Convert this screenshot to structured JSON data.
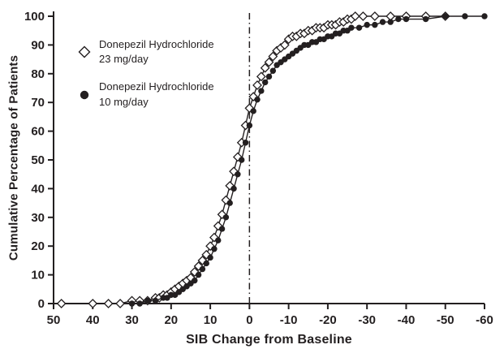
{
  "colors": {
    "ink": "#231f20",
    "background": "#ffffff"
  },
  "chart_data": {
    "type": "line",
    "title": "",
    "xlabel": "SIB Change from Baseline",
    "ylabel": "Cumulative Percentage of Patients",
    "grid": false,
    "legend_position": "upper-left-inside",
    "x_axis": {
      "min": 50,
      "max": -60,
      "reversed": true,
      "ticks": [
        50,
        40,
        30,
        20,
        10,
        0,
        -10,
        -20,
        -30,
        -40,
        -50,
        -60
      ]
    },
    "y_axis": {
      "min": 0,
      "max": 100,
      "ticks": [
        0,
        10,
        20,
        30,
        40,
        50,
        60,
        70,
        80,
        90,
        100
      ]
    },
    "reference_line": {
      "x": 0,
      "style": "dash-dot"
    },
    "series": [
      {
        "name": "Donepezil Hydrochloride 23 mg/day",
        "label_line1": "Donepezil Hydrochloride",
        "label_line2": "23 mg/day",
        "marker": "open-diamond",
        "color": "#231f20",
        "points": [
          [
            48,
            0
          ],
          [
            40,
            0
          ],
          [
            36,
            0
          ],
          [
            33,
            0
          ],
          [
            30,
            1
          ],
          [
            28,
            1
          ],
          [
            26,
            1
          ],
          [
            24,
            2
          ],
          [
            23,
            2
          ],
          [
            22,
            3
          ],
          [
            21,
            3
          ],
          [
            20,
            4
          ],
          [
            19,
            5
          ],
          [
            18,
            6
          ],
          [
            17,
            7
          ],
          [
            16,
            8
          ],
          [
            15,
            9
          ],
          [
            14,
            11
          ],
          [
            13,
            13
          ],
          [
            12,
            15
          ],
          [
            11,
            17
          ],
          [
            10,
            20
          ],
          [
            9,
            23
          ],
          [
            8,
            27
          ],
          [
            7,
            31
          ],
          [
            6,
            36
          ],
          [
            5,
            41
          ],
          [
            4,
            46
          ],
          [
            3,
            51
          ],
          [
            2,
            56
          ],
          [
            1,
            62
          ],
          [
            0,
            68
          ],
          [
            -1,
            72
          ],
          [
            -2,
            76
          ],
          [
            -3,
            79
          ],
          [
            -4,
            82
          ],
          [
            -5,
            84
          ],
          [
            -6,
            86
          ],
          [
            -7,
            88
          ],
          [
            -8,
            89
          ],
          [
            -9,
            90
          ],
          [
            -10,
            92
          ],
          [
            -11,
            93
          ],
          [
            -12,
            93
          ],
          [
            -13,
            94
          ],
          [
            -14,
            94
          ],
          [
            -15,
            95
          ],
          [
            -16,
            95
          ],
          [
            -17,
            96
          ],
          [
            -18,
            96
          ],
          [
            -19,
            96
          ],
          [
            -20,
            97
          ],
          [
            -21,
            97
          ],
          [
            -22,
            97
          ],
          [
            -23,
            98
          ],
          [
            -24,
            98
          ],
          [
            -25,
            99
          ],
          [
            -26,
            99
          ],
          [
            -27,
            100
          ],
          [
            -29,
            100
          ],
          [
            -32,
            100
          ],
          [
            -36,
            100
          ],
          [
            -40,
            100
          ],
          [
            -45,
            100
          ],
          [
            -50,
            100
          ]
        ]
      },
      {
        "name": "Donepezil Hydrochloride 10 mg/day",
        "label_line1": "Donepezil Hydrochloride",
        "label_line2": "10 mg/day",
        "marker": "filled-circle",
        "color": "#231f20",
        "points": [
          [
            30,
            0
          ],
          [
            28,
            0
          ],
          [
            26,
            1
          ],
          [
            24,
            1
          ],
          [
            22,
            2
          ],
          [
            21,
            2
          ],
          [
            20,
            3
          ],
          [
            19,
            3
          ],
          [
            18,
            4
          ],
          [
            17,
            5
          ],
          [
            16,
            6
          ],
          [
            15,
            7
          ],
          [
            14,
            8
          ],
          [
            13,
            10
          ],
          [
            12,
            12
          ],
          [
            11,
            14
          ],
          [
            10,
            16
          ],
          [
            9,
            19
          ],
          [
            8,
            22
          ],
          [
            7,
            26
          ],
          [
            6,
            30
          ],
          [
            5,
            35
          ],
          [
            4,
            40
          ],
          [
            3,
            45
          ],
          [
            2,
            50
          ],
          [
            1,
            56
          ],
          [
            0,
            62
          ],
          [
            -1,
            67
          ],
          [
            -2,
            71
          ],
          [
            -3,
            74
          ],
          [
            -4,
            77
          ],
          [
            -5,
            79
          ],
          [
            -6,
            81
          ],
          [
            -7,
            83
          ],
          [
            -8,
            84
          ],
          [
            -9,
            85
          ],
          [
            -10,
            86
          ],
          [
            -11,
            87
          ],
          [
            -12,
            88
          ],
          [
            -13,
            89
          ],
          [
            -14,
            90
          ],
          [
            -15,
            90
          ],
          [
            -16,
            91
          ],
          [
            -17,
            91
          ],
          [
            -18,
            92
          ],
          [
            -19,
            92
          ],
          [
            -20,
            93
          ],
          [
            -21,
            93
          ],
          [
            -22,
            94
          ],
          [
            -23,
            94
          ],
          [
            -24,
            95
          ],
          [
            -25,
            95
          ],
          [
            -26,
            96
          ],
          [
            -28,
            96
          ],
          [
            -30,
            97
          ],
          [
            -32,
            97
          ],
          [
            -34,
            98
          ],
          [
            -36,
            98
          ],
          [
            -38,
            99
          ],
          [
            -40,
            99
          ],
          [
            -45,
            99
          ],
          [
            -50,
            100
          ],
          [
            -55,
            100
          ],
          [
            -60,
            100
          ]
        ]
      }
    ]
  }
}
